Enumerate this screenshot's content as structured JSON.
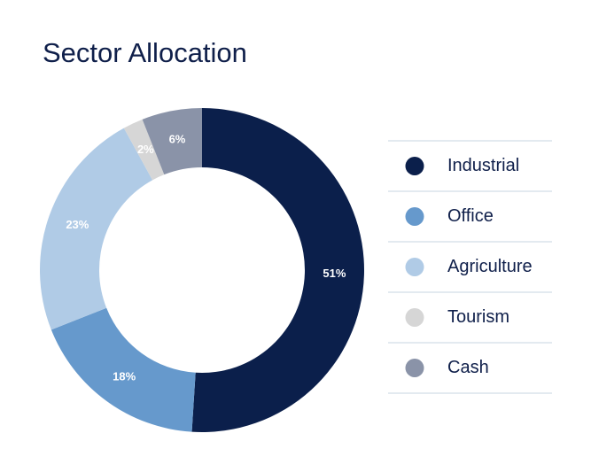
{
  "chart_data": {
    "type": "pie",
    "title": "Sector Allocation",
    "categories": [
      "Industrial",
      "Office",
      "Agriculture",
      "Tourism",
      "Cash"
    ],
    "values": [
      51,
      18,
      23,
      2,
      6
    ],
    "value_labels": [
      "51%",
      "18%",
      "23%",
      "2%",
      "6%"
    ],
    "colors": [
      "#0b1f4b",
      "#6699cc",
      "#b0cbe6",
      "#d6d6d6",
      "#8a93a8"
    ],
    "legend": "right"
  }
}
